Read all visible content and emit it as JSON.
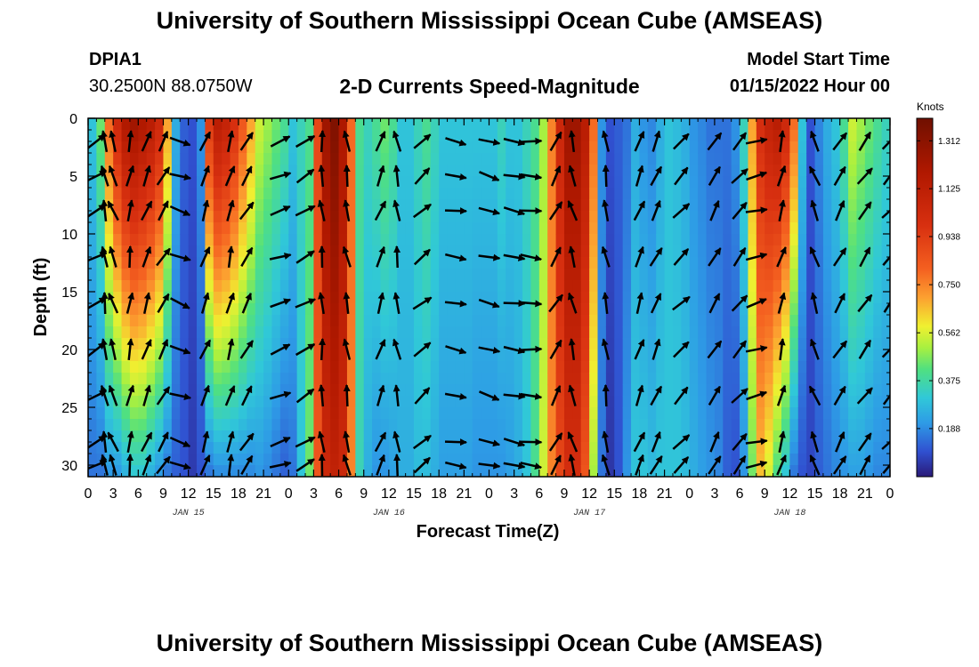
{
  "header": {
    "title": "University of Southern Mississippi Ocean Cube (AMSEAS)",
    "station": "DPIA1",
    "coords": "30.2500N  88.0750W",
    "subtitle": "2-D Currents Speed-Magnitude",
    "model_start_label": "Model Start Time",
    "model_start_value": "01/15/2022 Hour 00"
  },
  "footer": {
    "title": "University of Southern Mississippi Ocean Cube (AMSEAS)"
  },
  "chart_data": {
    "type": "heatmap",
    "xlabel": "Forecast Time(Z)",
    "ylabel": "Depth (ft)",
    "x_tick_labels": [
      "0",
      "3",
      "6",
      "9",
      "12",
      "15",
      "18",
      "21",
      "0",
      "3",
      "6",
      "9",
      "12",
      "15",
      "18",
      "21",
      "0",
      "3",
      "6",
      "9",
      "12",
      "15",
      "18",
      "21",
      "0",
      "3",
      "6",
      "9",
      "12",
      "15",
      "18",
      "21",
      "0"
    ],
    "day_labels": [
      "JAN 15",
      "JAN 16",
      "JAN 17",
      "JAN 18"
    ],
    "y_ticks": [
      0,
      5,
      10,
      15,
      20,
      25,
      30
    ],
    "y_tick_labels": [
      "0",
      "5",
      "10",
      "15",
      "20",
      "25",
      "30"
    ],
    "ylim": [
      0,
      31
    ],
    "xlim_hours": [
      0,
      96
    ],
    "colorbar": {
      "unit": "Knots",
      "tick_labels": [
        "1.312",
        "1.125",
        "0.938",
        "0.750",
        "0.562",
        "0.375",
        "0.188"
      ],
      "ticks": [
        1.312,
        1.125,
        0.938,
        0.75,
        0.562,
        0.375,
        0.188
      ],
      "range": [
        0.0,
        1.4
      ]
    },
    "speed_profile": {
      "hours": [
        0,
        1,
        2,
        3,
        4,
        5,
        6,
        7,
        8,
        9,
        10,
        11,
        12,
        13,
        14,
        15,
        16,
        17,
        18,
        19,
        20,
        21,
        22,
        23,
        24,
        25,
        26,
        27,
        28,
        29,
        30,
        31,
        32,
        33,
        34,
        35,
        36,
        37,
        38,
        39,
        40,
        41,
        42,
        43,
        44,
        45,
        46,
        47,
        48,
        49,
        50,
        51,
        52,
        53,
        54,
        55,
        56,
        57,
        58,
        59,
        60,
        61,
        62,
        63,
        64,
        65,
        66,
        67,
        68,
        69,
        70,
        71,
        72,
        73,
        74,
        75,
        76,
        77,
        78,
        79,
        80,
        81,
        82,
        83,
        84,
        85,
        86,
        87,
        88,
        89,
        90,
        91,
        92,
        93,
        94,
        95,
        96
      ],
      "surface_knots": [
        0.3,
        0.45,
        0.8,
        1.05,
        1.2,
        1.25,
        1.2,
        1.15,
        1.05,
        0.7,
        0.25,
        0.12,
        0.1,
        0.2,
        0.95,
        1.15,
        1.1,
        1.0,
        0.85,
        0.7,
        0.55,
        0.5,
        0.45,
        0.4,
        0.3,
        0.35,
        0.4,
        0.9,
        1.25,
        1.35,
        1.2,
        0.8,
        0.4,
        0.35,
        0.4,
        0.45,
        0.4,
        0.3,
        0.3,
        0.35,
        0.4,
        0.35,
        0.3,
        0.3,
        0.3,
        0.3,
        0.3,
        0.3,
        0.3,
        0.35,
        0.3,
        0.3,
        0.35,
        0.4,
        0.5,
        0.75,
        1.05,
        1.25,
        1.25,
        1.15,
        0.8,
        0.2,
        0.1,
        0.12,
        0.15,
        0.25,
        0.2,
        0.18,
        0.25,
        0.3,
        0.28,
        0.25,
        0.2,
        0.18,
        0.15,
        0.15,
        0.15,
        0.2,
        0.35,
        0.7,
        1.0,
        1.1,
        1.15,
        1.05,
        0.8,
        0.3,
        0.1,
        0.18,
        0.25,
        0.3,
        0.4,
        0.55,
        0.5,
        0.45,
        0.4,
        0.35,
        0.3
      ],
      "bottom_knots": [
        0.15,
        0.15,
        0.2,
        0.2,
        0.25,
        0.3,
        0.3,
        0.25,
        0.2,
        0.15,
        0.12,
        0.1,
        0.06,
        0.1,
        0.15,
        0.18,
        0.18,
        0.18,
        0.18,
        0.18,
        0.2,
        0.18,
        0.15,
        0.12,
        0.15,
        0.3,
        0.45,
        0.85,
        1.05,
        1.1,
        1.05,
        0.75,
        0.35,
        0.25,
        0.2,
        0.2,
        0.22,
        0.25,
        0.25,
        0.28,
        0.28,
        0.25,
        0.22,
        0.22,
        0.22,
        0.22,
        0.2,
        0.2,
        0.2,
        0.2,
        0.22,
        0.25,
        0.3,
        0.4,
        0.55,
        0.75,
        0.9,
        1.0,
        1.0,
        0.85,
        0.5,
        0.15,
        0.05,
        0.1,
        0.2,
        0.3,
        0.3,
        0.28,
        0.3,
        0.3,
        0.3,
        0.28,
        0.25,
        0.22,
        0.2,
        0.18,
        0.12,
        0.1,
        0.2,
        0.45,
        0.65,
        0.55,
        0.4,
        0.3,
        0.15,
        0.1,
        0.08,
        0.12,
        0.15,
        0.18,
        0.2,
        0.22,
        0.22,
        0.2,
        0.18,
        0.18,
        0.18
      ]
    },
    "vector_depths_ft": [
      2,
      5,
      8,
      12,
      16,
      20,
      24,
      28,
      30
    ],
    "vector_hours": [
      1,
      2,
      3,
      5,
      7,
      9,
      11,
      14,
      17,
      19,
      23,
      26,
      28,
      31,
      35,
      37,
      40,
      44,
      48,
      51,
      53,
      56,
      58,
      62,
      66,
      68,
      71,
      75,
      78,
      80,
      83,
      87,
      90,
      93,
      96
    ],
    "vector_angle_deg": [
      -30,
      -100,
      -110,
      -80,
      -70,
      -60,
      20,
      -70,
      -75,
      -60,
      -20,
      -30,
      -95,
      -100,
      -70,
      -100,
      -40,
      10,
      15,
      10,
      5,
      -60,
      -105,
      -100,
      -70,
      -65,
      -45,
      -60,
      -50,
      -15,
      -75,
      -110,
      -60,
      -55,
      -50
    ]
  }
}
